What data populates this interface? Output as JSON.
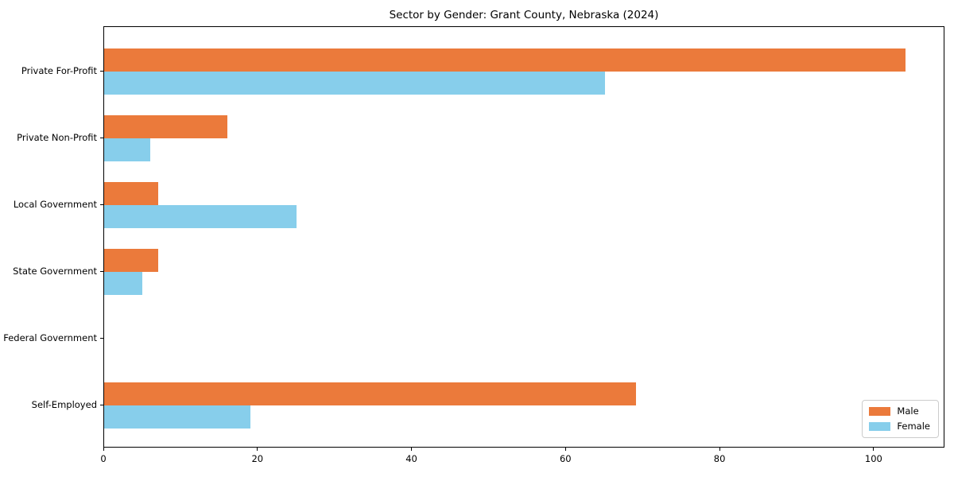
{
  "chart_data": {
    "type": "bar",
    "orientation": "horizontal",
    "title": "Sector by Gender: Grant County, Nebraska (2024)",
    "categories": [
      "Private For-Profit",
      "Private Non-Profit",
      "Local Government",
      "State Government",
      "Federal Government",
      "Self-Employed"
    ],
    "series": [
      {
        "name": "Male",
        "color": "#EB7A3B",
        "values": [
          104,
          16,
          7,
          7,
          0,
          69
        ]
      },
      {
        "name": "Female",
        "color": "#87CEEB",
        "values": [
          65,
          6,
          25,
          5,
          0,
          19
        ]
      }
    ],
    "xlabel": "",
    "ylabel": "",
    "xlim": [
      0,
      109.2
    ],
    "xticks": [
      0,
      20,
      40,
      60,
      80,
      100
    ],
    "grid": false,
    "legend_position": "lower right"
  }
}
